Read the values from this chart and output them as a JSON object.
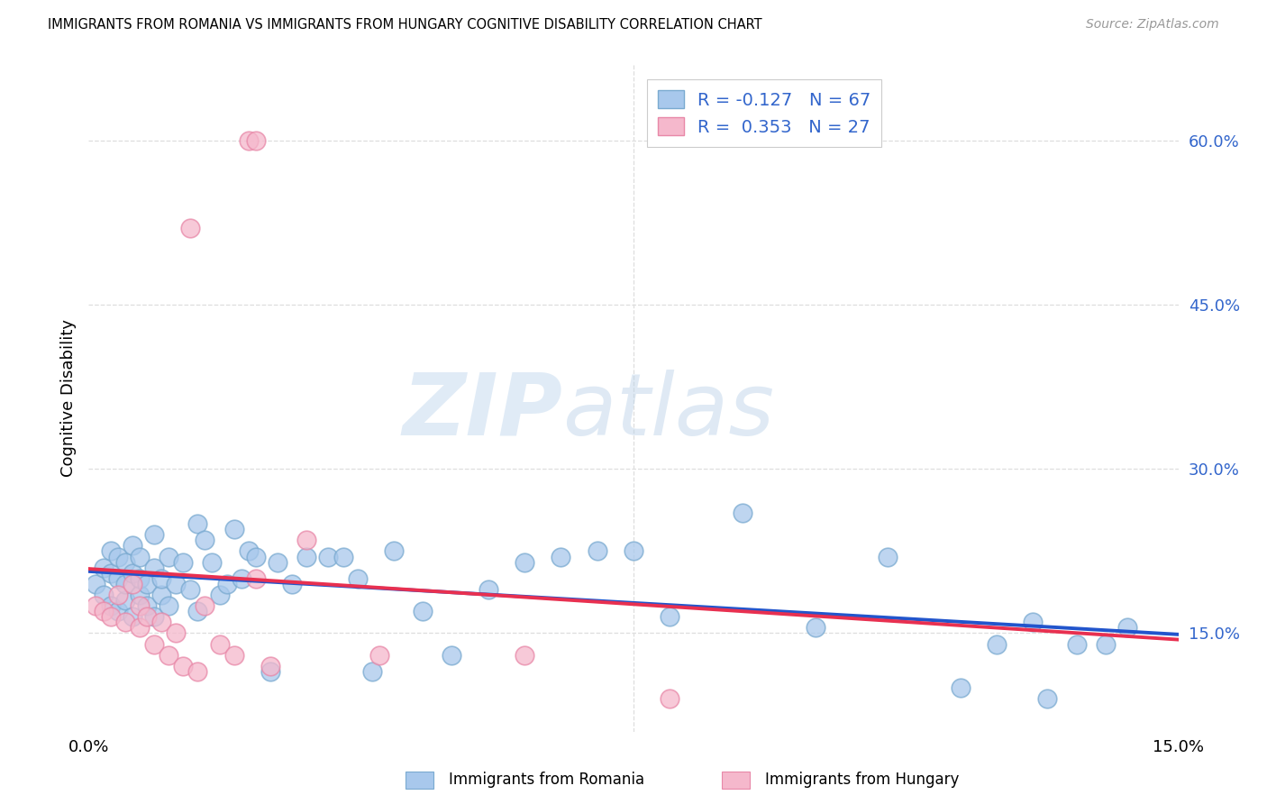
{
  "title": "IMMIGRANTS FROM ROMANIA VS IMMIGRANTS FROM HUNGARY COGNITIVE DISABILITY CORRELATION CHART",
  "source": "Source: ZipAtlas.com",
  "ylabel": "Cognitive Disability",
  "ytick_vals": [
    0.15,
    0.3,
    0.45,
    0.6
  ],
  "ytick_labels": [
    "15.0%",
    "30.0%",
    "45.0%",
    "60.0%"
  ],
  "xlim": [
    0.0,
    0.15
  ],
  "ylim": [
    0.06,
    0.67
  ],
  "romania_color": "#A8C8EC",
  "romania_edge_color": "#7AAAD0",
  "hungary_color": "#F5B8CC",
  "hungary_edge_color": "#E888A8",
  "romania_line_color": "#2255CC",
  "hungary_line_color": "#E83050",
  "dashed_line_color": "#C8C8C8",
  "legend_text_color": "#3366CC",
  "legend_n_color": "#3366CC",
  "background_color": "#FFFFFF",
  "grid_color": "#DEDEDE",
  "romania_x": [
    0.001,
    0.002,
    0.002,
    0.003,
    0.003,
    0.003,
    0.004,
    0.004,
    0.004,
    0.005,
    0.005,
    0.005,
    0.006,
    0.006,
    0.006,
    0.007,
    0.007,
    0.007,
    0.008,
    0.008,
    0.009,
    0.009,
    0.009,
    0.01,
    0.01,
    0.011,
    0.011,
    0.012,
    0.013,
    0.014,
    0.015,
    0.015,
    0.016,
    0.017,
    0.018,
    0.019,
    0.02,
    0.021,
    0.022,
    0.023,
    0.025,
    0.026,
    0.028,
    0.03,
    0.033,
    0.035,
    0.037,
    0.039,
    0.042,
    0.046,
    0.05,
    0.055,
    0.06,
    0.065,
    0.07,
    0.075,
    0.08,
    0.09,
    0.1,
    0.11,
    0.12,
    0.125,
    0.13,
    0.132,
    0.136,
    0.14,
    0.143
  ],
  "romania_y": [
    0.195,
    0.185,
    0.21,
    0.175,
    0.205,
    0.225,
    0.17,
    0.2,
    0.22,
    0.18,
    0.195,
    0.215,
    0.165,
    0.205,
    0.23,
    0.185,
    0.2,
    0.22,
    0.175,
    0.195,
    0.165,
    0.21,
    0.24,
    0.185,
    0.2,
    0.22,
    0.175,
    0.195,
    0.215,
    0.19,
    0.25,
    0.17,
    0.235,
    0.215,
    0.185,
    0.195,
    0.245,
    0.2,
    0.225,
    0.22,
    0.115,
    0.215,
    0.195,
    0.22,
    0.22,
    0.22,
    0.2,
    0.115,
    0.225,
    0.17,
    0.13,
    0.19,
    0.215,
    0.22,
    0.225,
    0.225,
    0.165,
    0.26,
    0.155,
    0.22,
    0.1,
    0.14,
    0.16,
    0.09,
    0.14,
    0.14,
    0.155
  ],
  "hungary_x": [
    0.001,
    0.002,
    0.003,
    0.004,
    0.005,
    0.006,
    0.007,
    0.007,
    0.008,
    0.009,
    0.01,
    0.011,
    0.012,
    0.013,
    0.015,
    0.016,
    0.018,
    0.02,
    0.022,
    0.023,
    0.023,
    0.025,
    0.014,
    0.03,
    0.04,
    0.06,
    0.08
  ],
  "hungary_y": [
    0.175,
    0.17,
    0.165,
    0.185,
    0.16,
    0.195,
    0.155,
    0.175,
    0.165,
    0.14,
    0.16,
    0.13,
    0.15,
    0.12,
    0.115,
    0.175,
    0.14,
    0.13,
    0.6,
    0.6,
    0.2,
    0.12,
    0.52,
    0.235,
    0.13,
    0.13,
    0.09
  ],
  "R_romania": -0.127,
  "N_romania": 67,
  "R_hungary": 0.353,
  "N_hungary": 27
}
